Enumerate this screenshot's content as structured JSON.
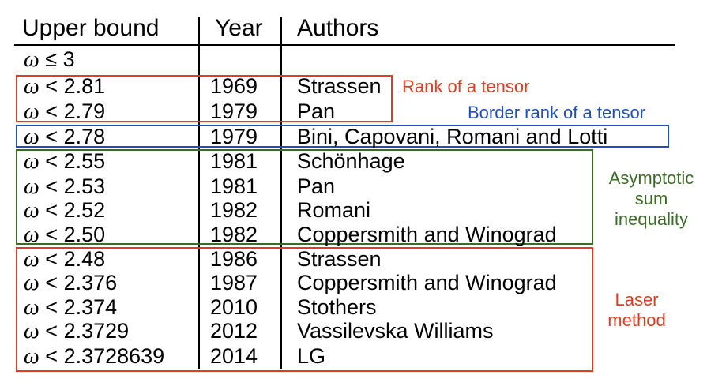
{
  "headers": {
    "upper_bound": "Upper bound",
    "year": "Year",
    "authors": "Authors"
  },
  "rows": [
    {
      "omega": "ω",
      "bound": "≤ 3",
      "year": "",
      "authors": ""
    },
    {
      "omega": "ω",
      "bound": "< 2.81",
      "year": "1969",
      "authors": "Strassen"
    },
    {
      "omega": "ω",
      "bound": "< 2.79",
      "year": "1979",
      "authors": "Pan"
    },
    {
      "omega": "ω",
      "bound": "< 2.78",
      "year": "1979",
      "authors": "Bini, Capovani, Romani and Lotti"
    },
    {
      "omega": "ω",
      "bound": "< 2.55",
      "year": "1981",
      "authors": "Schönhage"
    },
    {
      "omega": "ω",
      "bound": "< 2.53",
      "year": "1981",
      "authors": "Pan"
    },
    {
      "omega": "ω",
      "bound": "< 2.52",
      "year": "1982",
      "authors": "Romani"
    },
    {
      "omega": "ω",
      "bound": "< 2.50",
      "year": "1982",
      "authors": "Coppersmith and Winograd"
    },
    {
      "omega": "ω",
      "bound": "< 2.48",
      "year": "1986",
      "authors": "Strassen"
    },
    {
      "omega": "ω",
      "bound": "< 2.376",
      "year": "1987",
      "authors": "Coppersmith and Winograd"
    },
    {
      "omega": "ω",
      "bound": "< 2.374",
      "year": "2010",
      "authors": "Stothers"
    },
    {
      "omega": "ω",
      "bound": "< 2.3729",
      "year": "2012",
      "authors": "Vassilevska Williams"
    },
    {
      "omega": "ω",
      "bound": "< 2.3728639",
      "year": "2014",
      "authors": "LG"
    }
  ],
  "groups": {
    "rank": {
      "label": "Rank of a tensor",
      "color": "#e03c1f"
    },
    "border_rank": {
      "label": "Border rank of a tensor",
      "color": "#1f4fbf"
    },
    "asymptotic": {
      "line1": "Asymptotic",
      "line2": "sum",
      "line3": "inequality",
      "color": "#3a6b24"
    },
    "laser": {
      "line1": "Laser",
      "line2": "method",
      "color": "#e03c1f"
    }
  }
}
